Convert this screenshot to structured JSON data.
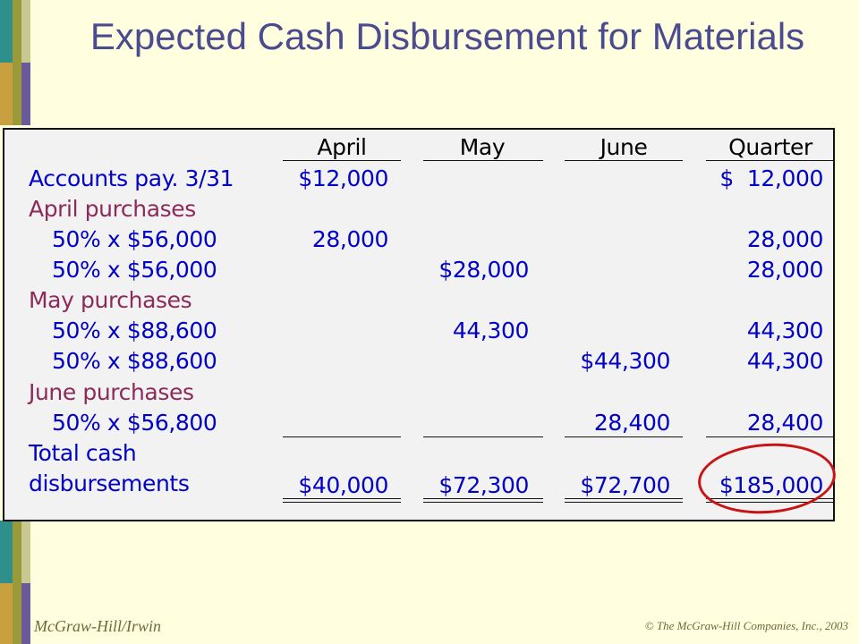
{
  "slide": {
    "title": "Expected Cash Disbursement for Materials",
    "footer_left": "McGraw-Hill/Irwin",
    "footer_right": "© The McGraw-Hill Companies, Inc., 2003"
  },
  "table": {
    "columns": [
      "April",
      "May",
      "June",
      "Quarter"
    ],
    "rows": [
      {
        "label": "Accounts pay. 3/31",
        "april": "$12,000",
        "may": "",
        "june": "",
        "quarter": "$  12,000"
      },
      {
        "label": "April purchases",
        "april": "",
        "may": "",
        "june": "",
        "quarter": ""
      },
      {
        "label": "50% x $56,000",
        "april": "28,000",
        "may": "",
        "june": "",
        "quarter": "28,000"
      },
      {
        "label": "50% x $56,000",
        "april": "",
        "may": "$28,000",
        "june": "",
        "quarter": "28,000"
      },
      {
        "label": "May purchases",
        "april": "",
        "may": "",
        "june": "",
        "quarter": ""
      },
      {
        "label": "50% x $88,600",
        "april": "",
        "may": "44,300",
        "june": "",
        "quarter": "44,300"
      },
      {
        "label": "50% x $88,600",
        "april": "",
        "may": "",
        "june": "$44,300",
        "quarter": "44,300"
      },
      {
        "label": "June purchases",
        "april": "",
        "may": "",
        "june": "",
        "quarter": ""
      },
      {
        "label": "50% x $56,800",
        "april": "",
        "may": "",
        "june": "28,400",
        "quarter": "28,400"
      },
      {
        "label": "Total cash",
        "april": "",
        "may": "",
        "june": "",
        "quarter": ""
      },
      {
        "label": "disbursements",
        "april": "$40,000",
        "may": "$72,300",
        "june": "$72,700",
        "quarter": "$185,000"
      }
    ]
  },
  "colors": {
    "title": "#4b4b8f",
    "label_blue": "#0000c8",
    "label_purple": "#8c2a5a",
    "highlight_oval": "#c81414",
    "background": "#ffffe0",
    "panel": "#f2f2f2"
  }
}
